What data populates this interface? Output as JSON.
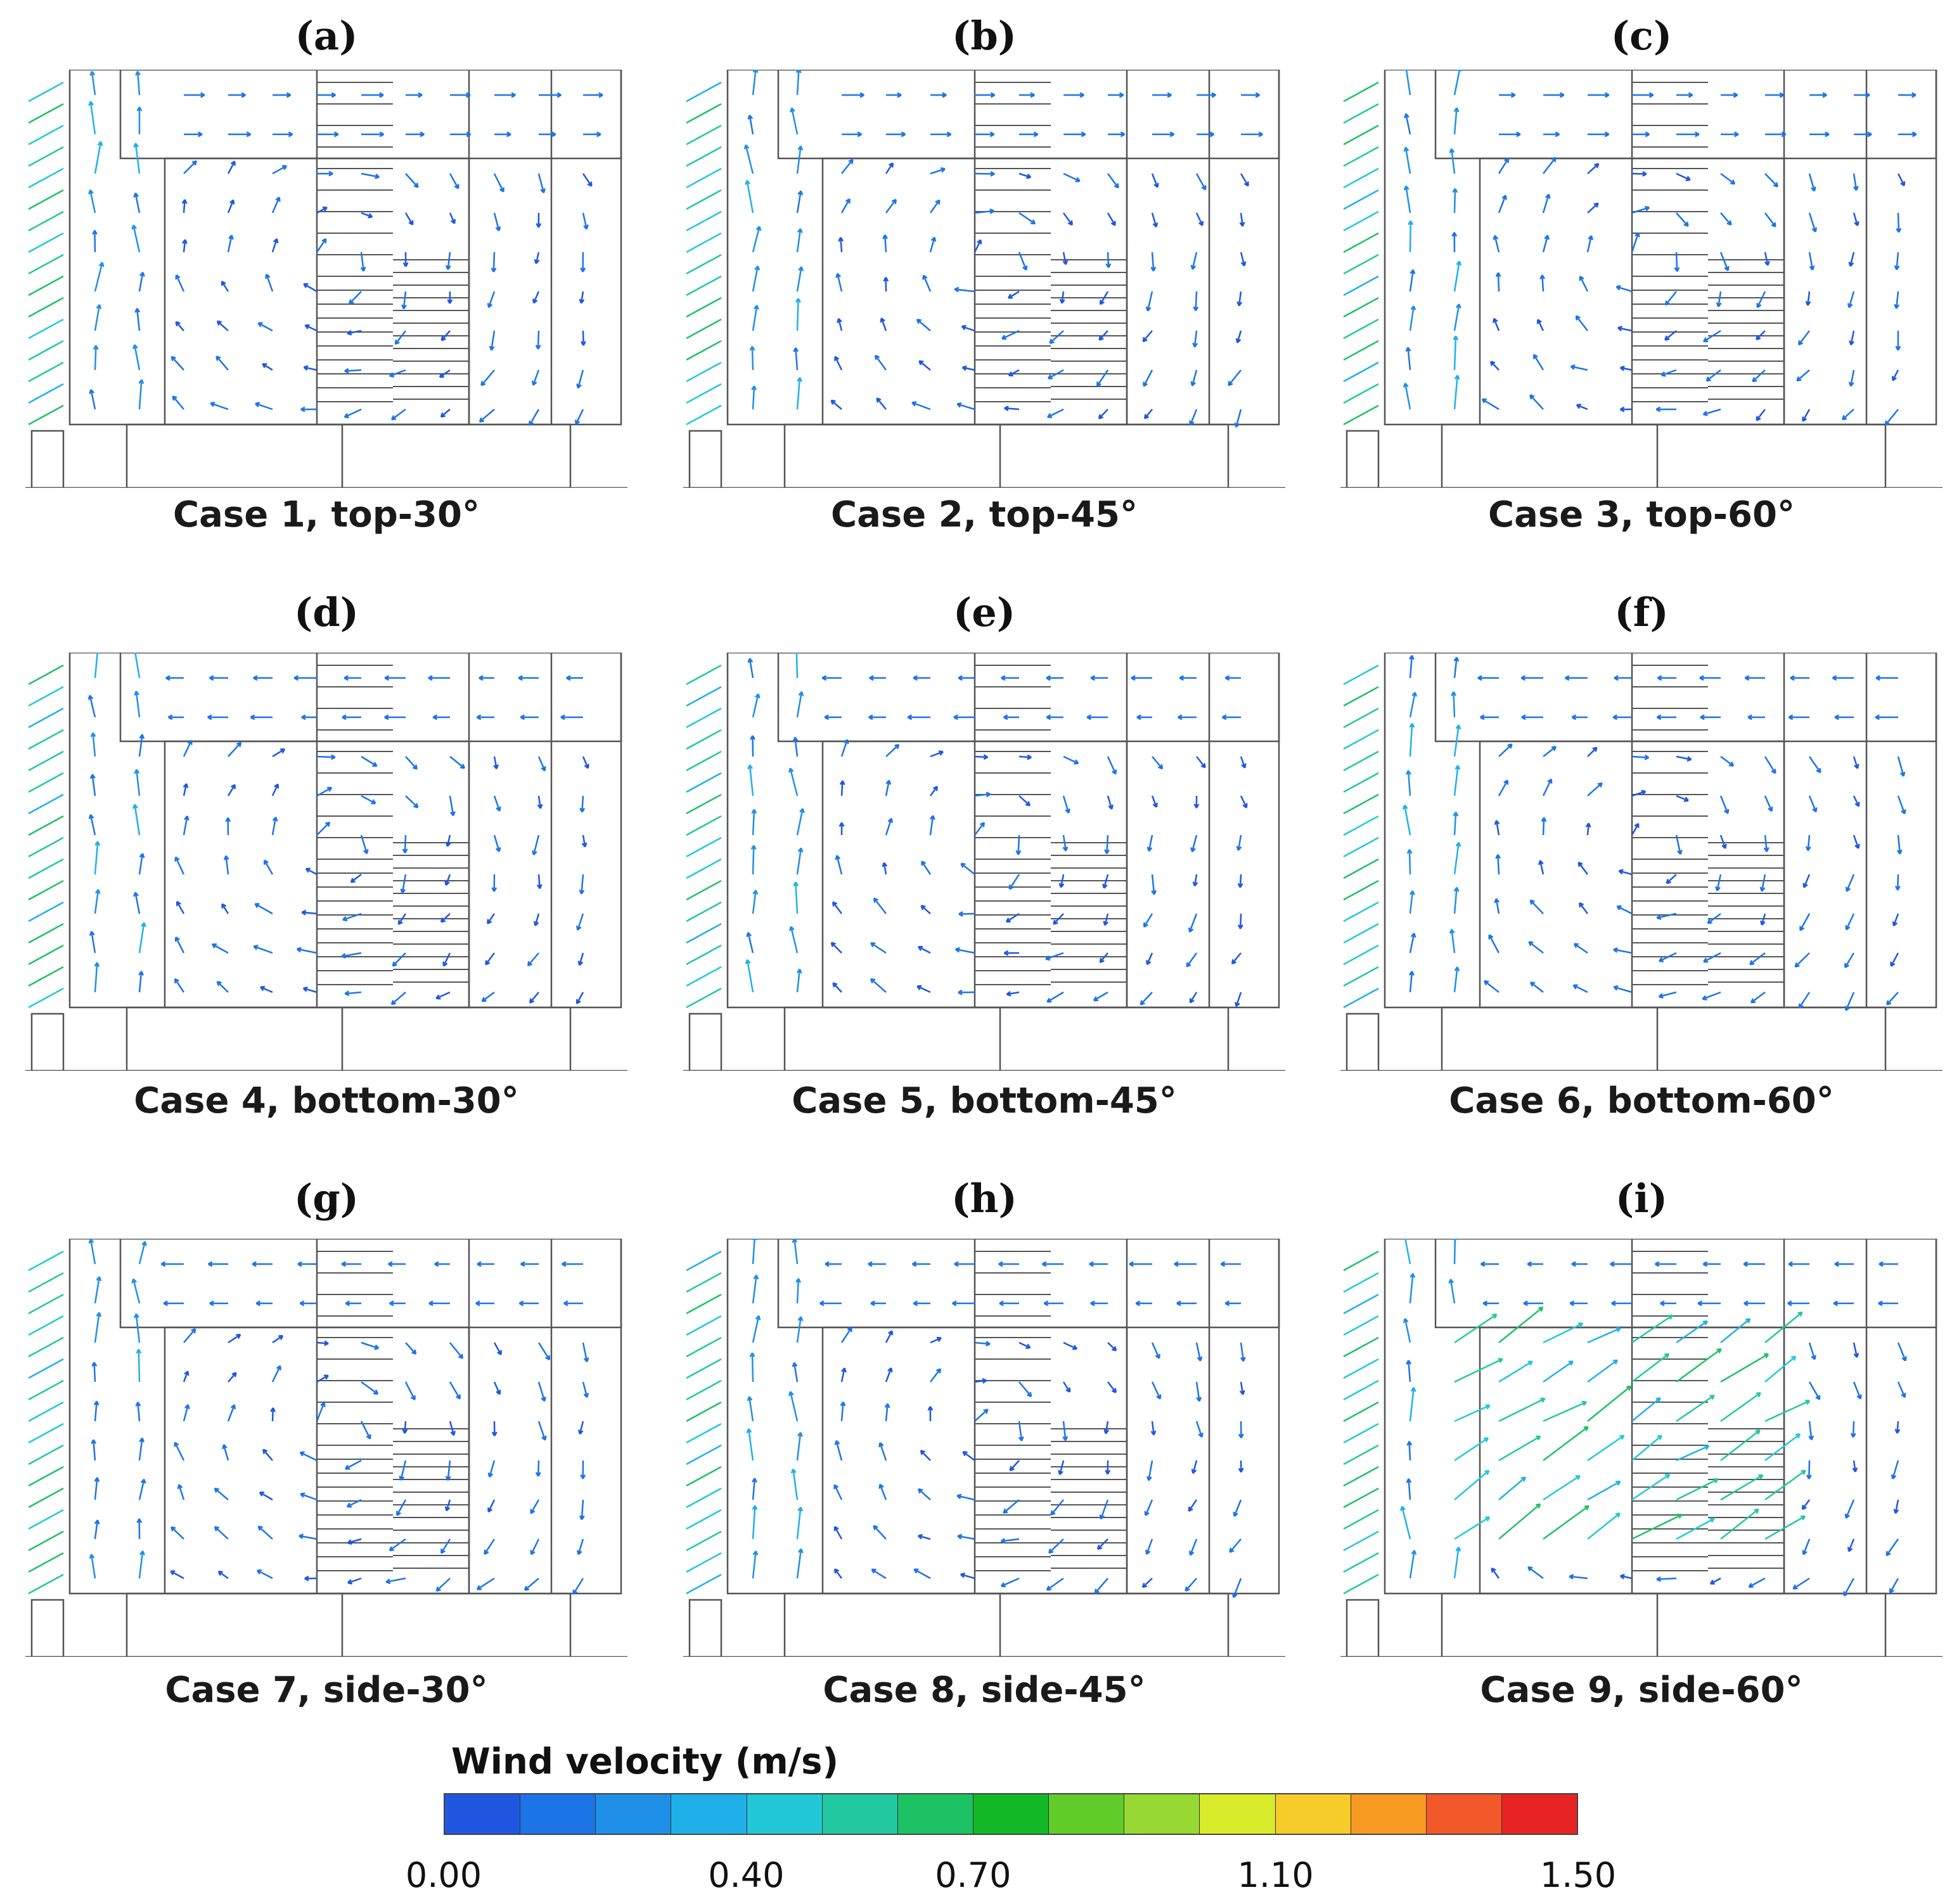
{
  "figure": {
    "panels": [
      {
        "letter": "(a)",
        "caption": "Case 1, top-30°",
        "case": 1,
        "position": "top",
        "angle": "30°"
      },
      {
        "letter": "(b)",
        "caption": "Case 2, top-45°",
        "case": 2,
        "position": "top",
        "angle": "45°"
      },
      {
        "letter": "(c)",
        "caption": "Case 3, top-60°",
        "case": 3,
        "position": "top",
        "angle": "60°"
      },
      {
        "letter": "(d)",
        "caption": "Case 4, bottom-30°",
        "case": 4,
        "position": "bottom",
        "angle": "30°"
      },
      {
        "letter": "(e)",
        "caption": "Case 5, bottom-45°",
        "case": 5,
        "position": "bottom",
        "angle": "45°"
      },
      {
        "letter": "(f)",
        "caption": "Case 6, bottom-60°",
        "case": 6,
        "position": "bottom",
        "angle": "60°"
      },
      {
        "letter": "(g)",
        "caption": "Case 7, side-30°",
        "case": 7,
        "position": "side",
        "angle": "30°"
      },
      {
        "letter": "(h)",
        "caption": "Case 8, side-45°",
        "case": 8,
        "position": "side",
        "angle": "45°"
      },
      {
        "letter": "(i)",
        "caption": "Case 9, side-60°",
        "case": 9,
        "position": "side",
        "angle": "60°"
      }
    ]
  },
  "legend": {
    "title": "Wind velocity (m/s)",
    "min": 0.0,
    "max": 1.5,
    "ticks": [
      {
        "label": "0.00",
        "value": 0.0
      },
      {
        "label": "0.40",
        "value": 0.4
      },
      {
        "label": "0.70",
        "value": 0.7
      },
      {
        "label": "1.10",
        "value": 1.1
      },
      {
        "label": "1.50",
        "value": 1.5
      }
    ],
    "colors": [
      "#1f57e0",
      "#1d74e6",
      "#1f8fe8",
      "#1fb0ea",
      "#22c8d8",
      "#21c8a0",
      "#1dc264",
      "#13b826",
      "#5fcc2a",
      "#98d832",
      "#d8ec2c",
      "#f7cb2a",
      "#f79a22",
      "#f2582a",
      "#e82323"
    ]
  }
}
